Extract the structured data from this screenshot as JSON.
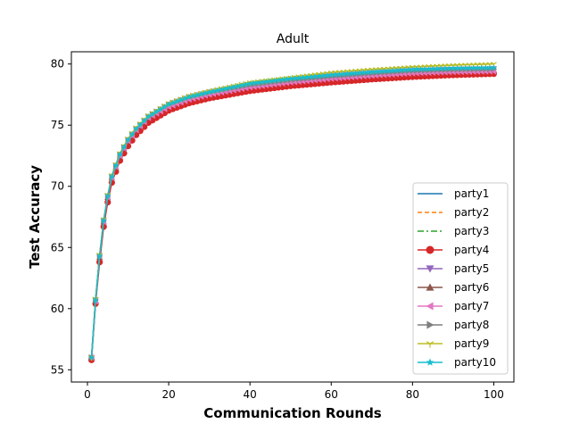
{
  "chart_data": {
    "type": "line",
    "title": "Adult",
    "xlabel": "Communication Rounds",
    "ylabel": "Test Accuracy",
    "xlim": [
      -3.95,
      104.95
    ],
    "ylim": [
      54.0,
      81.0
    ],
    "xticks": [
      0,
      20,
      40,
      60,
      80,
      100
    ],
    "yticks": [
      55,
      60,
      65,
      70,
      75,
      80
    ],
    "grid": false,
    "legend_position": "lower-right",
    "x": [
      1,
      2,
      3,
      4,
      5,
      6,
      7,
      8,
      9,
      10,
      12,
      15,
      20,
      25,
      30,
      40,
      50,
      60,
      70,
      80,
      90,
      100
    ],
    "series": [
      {
        "name": "party1",
        "color": "#1f77b4",
        "linestyle": "solid",
        "marker": "none",
        "values": [
          56.0,
          60.7,
          64.3,
          67.2,
          69.2,
          70.8,
          71.7,
          72.6,
          73.2,
          73.8,
          74.7,
          75.7,
          76.7,
          77.3,
          77.7,
          78.3,
          78.7,
          79.0,
          79.25,
          79.45,
          79.55,
          79.6
        ]
      },
      {
        "name": "party2",
        "color": "#ff7f0e",
        "linestyle": "dashed",
        "marker": "none",
        "values": [
          55.9,
          60.6,
          64.2,
          67.0,
          69.0,
          70.6,
          71.5,
          72.4,
          73.0,
          73.6,
          74.5,
          75.5,
          76.5,
          77.1,
          77.5,
          78.1,
          78.5,
          78.8,
          79.05,
          79.25,
          79.35,
          79.4
        ]
      },
      {
        "name": "party3",
        "color": "#2ca02c",
        "linestyle": "dashdot",
        "marker": "none",
        "values": [
          56.0,
          60.7,
          64.3,
          67.2,
          69.2,
          70.8,
          71.7,
          72.6,
          73.2,
          73.8,
          74.7,
          75.7,
          76.7,
          77.3,
          77.7,
          78.3,
          78.7,
          79.0,
          79.25,
          79.45,
          79.55,
          79.6
        ]
      },
      {
        "name": "party4",
        "color": "#d62728",
        "linestyle": "solid",
        "marker": "circle",
        "values": [
          55.8,
          60.4,
          63.8,
          66.7,
          68.7,
          70.3,
          71.2,
          72.1,
          72.7,
          73.3,
          74.2,
          75.2,
          76.2,
          76.8,
          77.2,
          77.8,
          78.2,
          78.5,
          78.75,
          78.95,
          79.1,
          79.2
        ]
      },
      {
        "name": "party5",
        "color": "#9467bd",
        "linestyle": "solid",
        "marker": "triangle-down",
        "values": [
          56.0,
          60.7,
          64.3,
          67.2,
          69.2,
          70.8,
          71.7,
          72.6,
          73.2,
          73.8,
          74.7,
          75.7,
          76.7,
          77.3,
          77.7,
          78.3,
          78.7,
          79.0,
          79.25,
          79.45,
          79.55,
          79.6
        ]
      },
      {
        "name": "party6",
        "color": "#8c564b",
        "linestyle": "solid",
        "marker": "triangle-up",
        "values": [
          56.0,
          60.6,
          64.2,
          67.1,
          69.1,
          70.7,
          71.6,
          72.5,
          73.1,
          73.7,
          74.6,
          75.6,
          76.6,
          77.2,
          77.6,
          78.2,
          78.6,
          78.9,
          79.15,
          79.35,
          79.45,
          79.5
        ]
      },
      {
        "name": "party7",
        "color": "#e377c2",
        "linestyle": "solid",
        "marker": "triangle-left",
        "values": [
          56.0,
          60.6,
          64.3,
          67.1,
          69.1,
          70.7,
          71.6,
          72.5,
          73.1,
          73.7,
          74.6,
          75.6,
          76.5,
          77.1,
          77.5,
          78.1,
          78.5,
          78.8,
          79.05,
          79.25,
          79.35,
          79.4
        ]
      },
      {
        "name": "party8",
        "color": "#7f7f7f",
        "linestyle": "solid",
        "marker": "triangle-right",
        "values": [
          56.0,
          60.7,
          64.3,
          67.2,
          69.2,
          70.8,
          71.7,
          72.6,
          73.2,
          73.8,
          74.7,
          75.7,
          76.7,
          77.3,
          77.7,
          78.3,
          78.7,
          79.0,
          79.25,
          79.45,
          79.55,
          79.6
        ]
      },
      {
        "name": "party9",
        "color": "#bcbd22",
        "linestyle": "solid",
        "marker": "tri-down",
        "values": [
          56.0,
          60.8,
          64.4,
          67.3,
          69.3,
          70.9,
          71.8,
          72.7,
          73.3,
          73.9,
          74.8,
          75.8,
          76.8,
          77.4,
          77.8,
          78.5,
          78.9,
          79.3,
          79.55,
          79.75,
          79.9,
          80.0
        ]
      },
      {
        "name": "party10",
        "color": "#17becf",
        "linestyle": "solid",
        "marker": "star",
        "values": [
          56.0,
          60.7,
          64.3,
          67.2,
          69.2,
          70.8,
          71.7,
          72.6,
          73.2,
          73.8,
          74.7,
          75.7,
          76.7,
          77.3,
          77.7,
          78.4,
          78.8,
          79.1,
          79.35,
          79.55,
          79.65,
          79.7
        ]
      }
    ]
  }
}
